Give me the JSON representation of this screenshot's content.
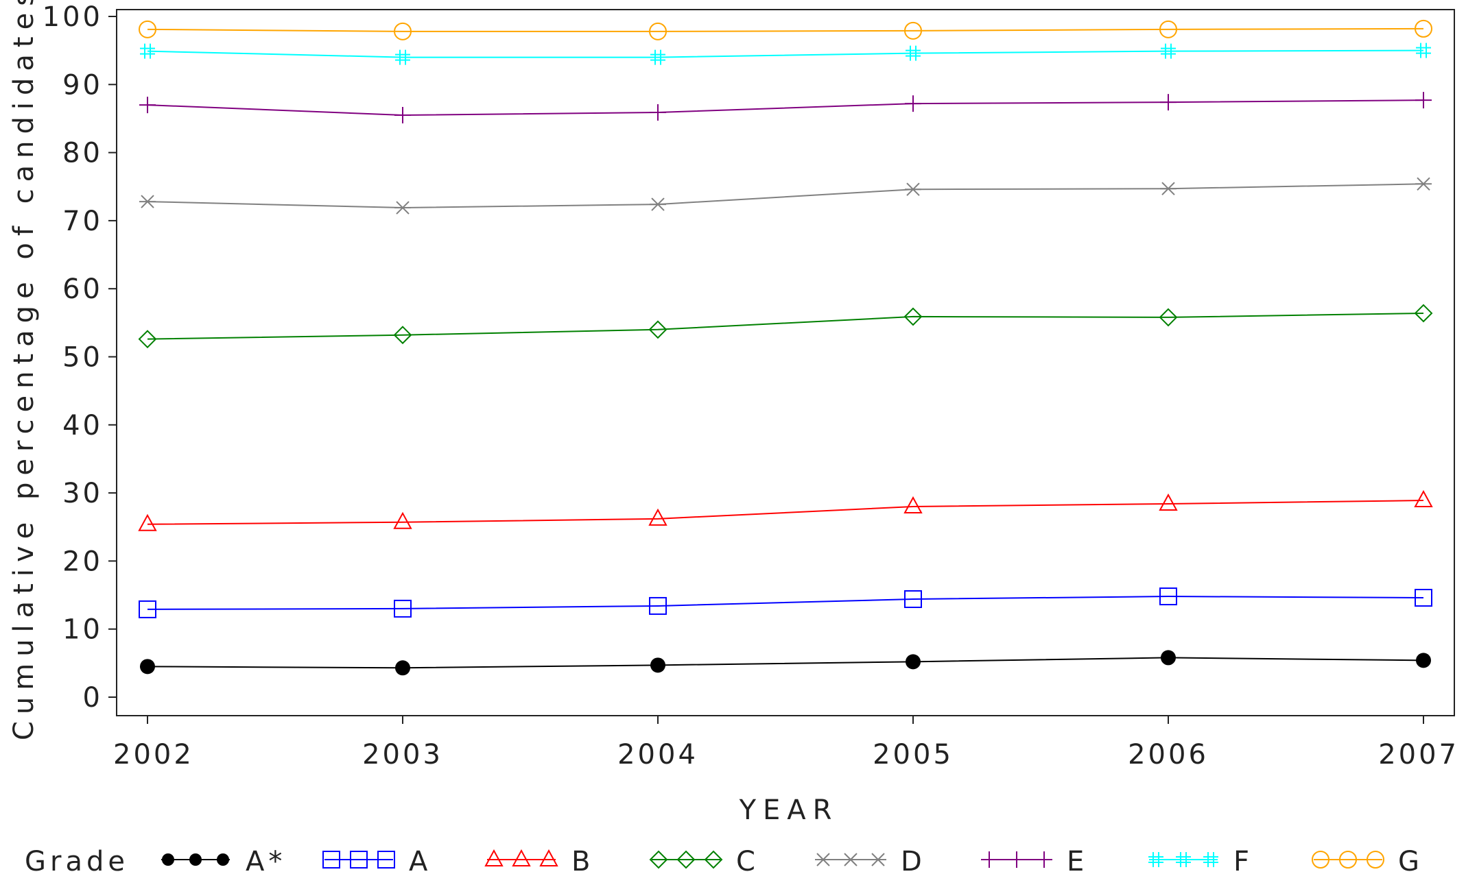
{
  "chart_data": {
    "type": "line",
    "title": "",
    "xlabel": "YEAR",
    "ylabel": "Cumulative percentage of candidates",
    "x": [
      "2002",
      "2003",
      "2004",
      "2005",
      "2006",
      "2007"
    ],
    "xlim": [
      2002,
      2007
    ],
    "ylim": [
      0,
      100
    ],
    "yticks": [
      0,
      10,
      20,
      30,
      40,
      50,
      60,
      70,
      80,
      90,
      100
    ],
    "grid": false,
    "legend": {
      "title": "Grade",
      "position": "bottom"
    },
    "series": [
      {
        "name": "A*",
        "color": "#000000",
        "marker": "filled-circle",
        "values": [
          4.5,
          4.3,
          4.7,
          5.2,
          5.8,
          5.4
        ]
      },
      {
        "name": "A",
        "color": "#0000ff",
        "marker": "square",
        "values": [
          12.9,
          13.0,
          13.4,
          14.4,
          14.8,
          14.6
        ]
      },
      {
        "name": "B",
        "color": "#ff0000",
        "marker": "triangle",
        "values": [
          25.4,
          25.7,
          26.2,
          28.0,
          28.4,
          28.9
        ]
      },
      {
        "name": "C",
        "color": "#008000",
        "marker": "diamond",
        "values": [
          52.6,
          53.2,
          54.0,
          55.9,
          55.8,
          56.4
        ]
      },
      {
        "name": "D",
        "color": "#808080",
        "marker": "star",
        "values": [
          72.8,
          71.9,
          72.4,
          74.6,
          74.7,
          75.4
        ]
      },
      {
        "name": "E",
        "color": "#800080",
        "marker": "plus",
        "values": [
          87.0,
          85.5,
          85.9,
          87.2,
          87.4,
          87.7
        ]
      },
      {
        "name": "F",
        "color": "#00ffff",
        "marker": "hash",
        "values": [
          94.9,
          94.0,
          94.0,
          94.6,
          94.9,
          95.0
        ]
      },
      {
        "name": "G",
        "color": "#ffa500",
        "marker": "circle",
        "values": [
          98.1,
          97.8,
          97.8,
          97.9,
          98.1,
          98.2
        ]
      }
    ]
  }
}
